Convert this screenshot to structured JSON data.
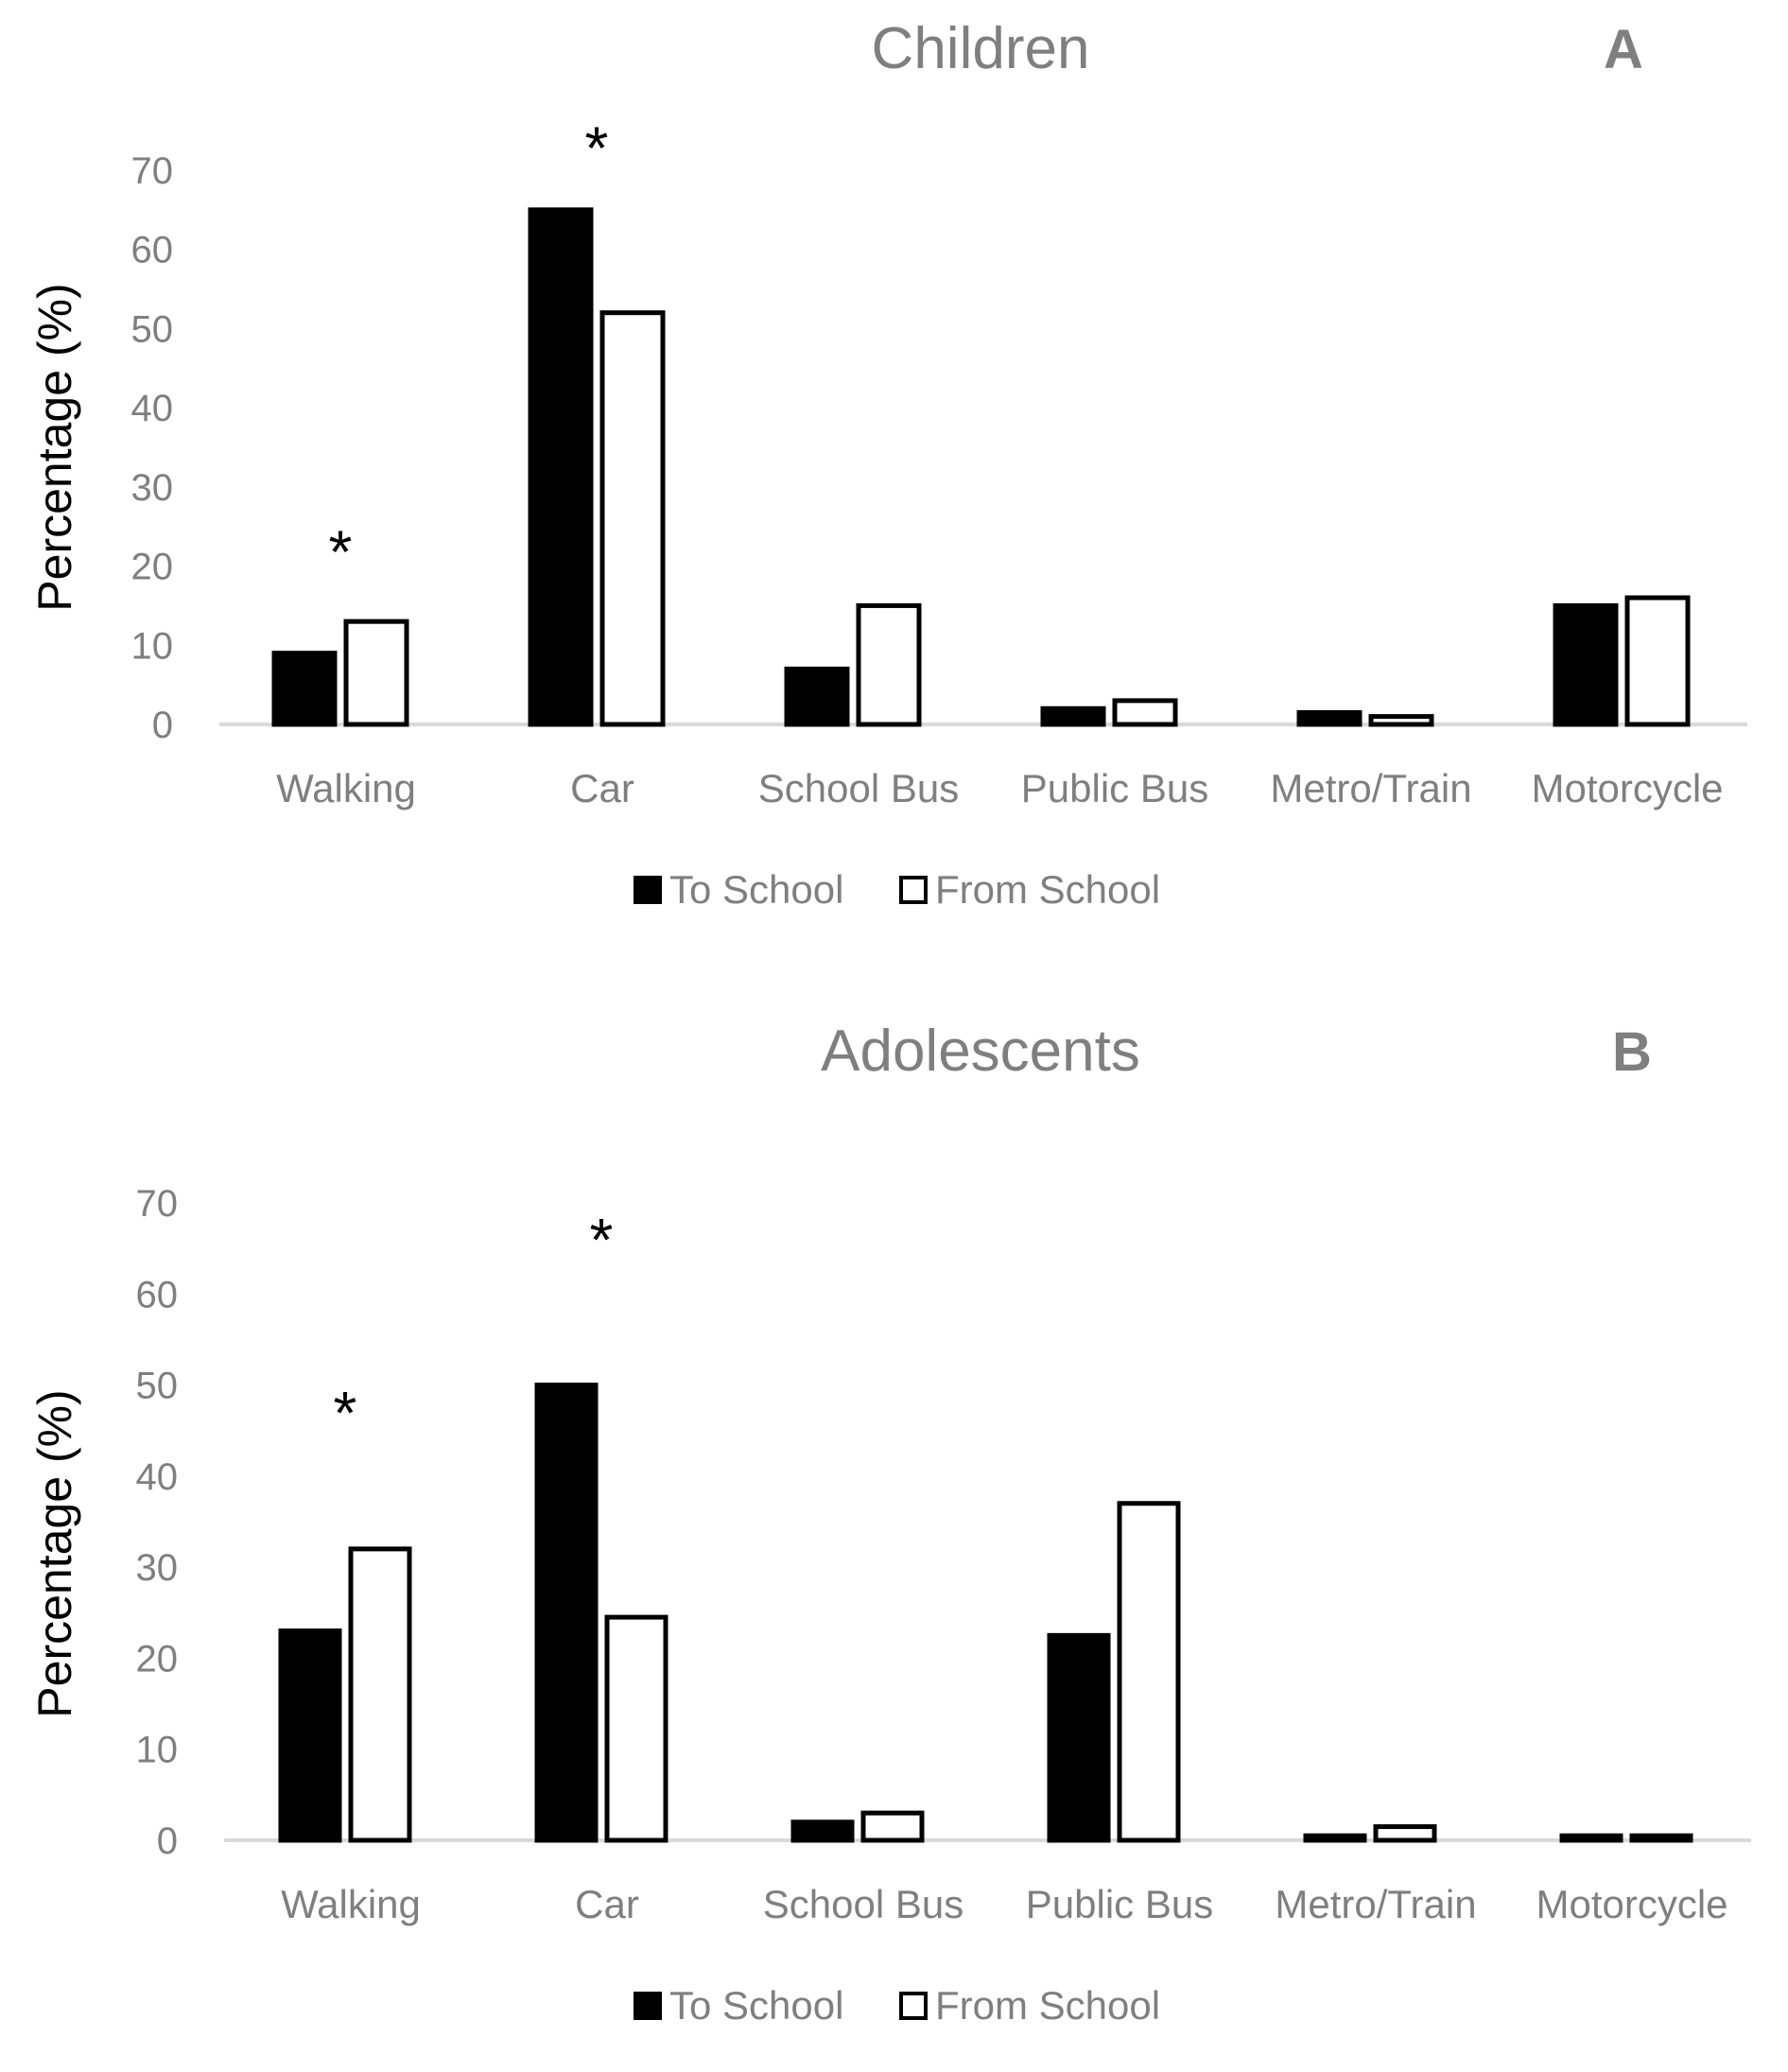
{
  "chart_data": [
    {
      "type": "bar",
      "panel": "A",
      "title": "Children",
      "xlabel": "",
      "ylabel": "Percentage (%)",
      "ylim": [
        0,
        70
      ],
      "yticks": [
        0,
        10,
        20,
        30,
        40,
        50,
        60,
        70
      ],
      "categories": [
        "Walking",
        "Car",
        "School Bus",
        "Public Bus",
        "Metro/Train",
        "Motorcycle"
      ],
      "series": [
        {
          "name": "To School",
          "fill": "#000000",
          "values": [
            9,
            65,
            7,
            2,
            1.5,
            15
          ]
        },
        {
          "name": "From School",
          "fill": "#ffffff",
          "values": [
            13,
            52,
            15,
            3,
            1,
            16
          ]
        }
      ],
      "annotations": [
        {
          "category": "Walking",
          "text": "*",
          "value": 23
        },
        {
          "category": "Car",
          "text": "*",
          "value": 74
        }
      ],
      "legend_position": "bottom",
      "grid": false
    },
    {
      "type": "bar",
      "panel": "B",
      "title": "Adolescents",
      "xlabel": "",
      "ylabel": "Percentage (%)",
      "ylim": [
        0,
        70
      ],
      "yticks": [
        0,
        10,
        20,
        30,
        40,
        50,
        60,
        70
      ],
      "categories": [
        "Walking",
        "Car",
        "School Bus",
        "Public Bus",
        "Metro/Train",
        "Motorcycle"
      ],
      "series": [
        {
          "name": "To School",
          "fill": "#000000",
          "values": [
            23,
            50,
            2,
            22.5,
            0.5,
            0.5
          ]
        },
        {
          "name": "From School",
          "fill": "#ffffff",
          "values": [
            32,
            24.5,
            3,
            37,
            1.5,
            0.5
          ]
        }
      ],
      "annotations": [
        {
          "category": "Walking",
          "text": "*",
          "value": 48
        },
        {
          "category": "Car",
          "text": "*",
          "value": 67
        }
      ],
      "legend_position": "bottom",
      "grid": false
    }
  ],
  "colors": {
    "title": "#7f7f7f",
    "tick_label": "#7f7f7f",
    "axis_line": "#d9d9d9",
    "bar_outline": "#000000",
    "ylabel": "#000000"
  }
}
